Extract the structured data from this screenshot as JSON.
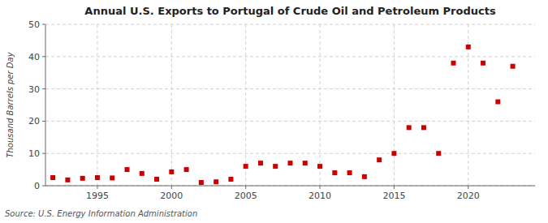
{
  "chart_data": {
    "type": "scatter",
    "title": "Annual U.S. Exports to Portugal of Crude Oil and Petroleum Products",
    "ylabel": "Thousand Barrels per Day",
    "source": "Source: U.S. Energy Information Administration",
    "x": [
      1992,
      1993,
      1994,
      1995,
      1996,
      1997,
      1998,
      1999,
      2000,
      2001,
      2002,
      2003,
      2004,
      2005,
      2006,
      2007,
      2008,
      2009,
      2010,
      2011,
      2012,
      2013,
      2014,
      2015,
      2016,
      2017,
      2018,
      2019,
      2020,
      2021,
      2022,
      2023
    ],
    "values": [
      2.5,
      1.8,
      2.3,
      2.5,
      2.4,
      5.0,
      3.8,
      2.0,
      4.3,
      5.0,
      1.0,
      1.2,
      2.0,
      6.0,
      7.0,
      6.0,
      7.0,
      7.0,
      6.0,
      4.0,
      4.0,
      2.8,
      8.0,
      10.0,
      18.0,
      18.0,
      10.0,
      38.0,
      43.0,
      38.0,
      26.0,
      37.0
    ],
    "color": "#cc0000",
    "marker": "square",
    "xlim": [
      1991.5,
      2024.5
    ],
    "ylim": [
      0,
      50
    ],
    "xticks": [
      1995,
      2000,
      2005,
      2010,
      2015,
      2020
    ],
    "yticks": [
      0,
      10,
      20,
      30,
      40,
      50
    ],
    "grid": true
  }
}
